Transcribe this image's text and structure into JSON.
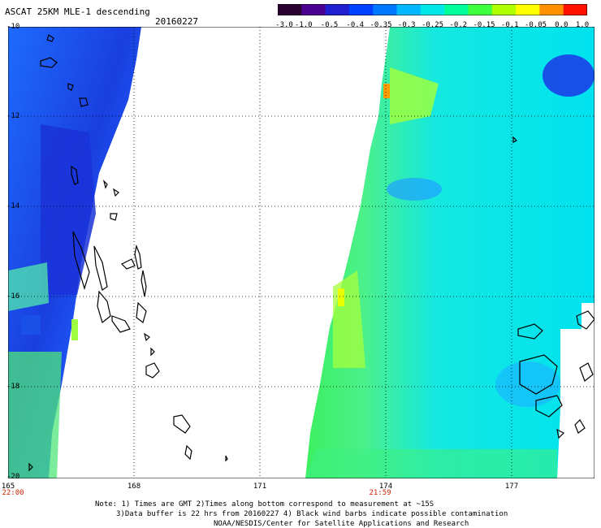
{
  "header": {
    "title": "ASCAT 25KM MLE-1 descending",
    "date": "20160227"
  },
  "colorbar": {
    "labels": [
      "-3.0",
      "-1.0",
      "-0.5",
      "-0.4",
      "-0.35",
      "-0.3",
      "-0.25",
      "-0.2",
      "-0.15",
      "-0.1",
      "-0.05",
      "0.0",
      "1.0"
    ],
    "colors": [
      "#2a0030",
      "#4a0090",
      "#2020d0",
      "#0040ff",
      "#0078ff",
      "#00b8ff",
      "#00e8e8",
      "#00ff9a",
      "#40ff40",
      "#b0ff00",
      "#ffff00",
      "#ff9000",
      "#ff1000"
    ]
  },
  "map": {
    "lat_labels": [
      "-10",
      "-12",
      "-14",
      "-16",
      "-18",
      "-20"
    ],
    "lon_labels": [
      "165",
      "168",
      "171",
      "174",
      "177"
    ],
    "time_labels": [
      {
        "lon": "165",
        "time": "22:00"
      },
      {
        "lon": "174",
        "time": "21:59"
      }
    ]
  },
  "footer": {
    "line1": "Note: 1) Times are GMT 2)Times along bottom correspond to measurement at ~15S",
    "line2": "3)Data buffer is 22 hrs from 20160227 4) Black wind barbs indicate possible contamination",
    "line3": "NOAA/NESDIS/Center for Satellite Applications and Research"
  }
}
